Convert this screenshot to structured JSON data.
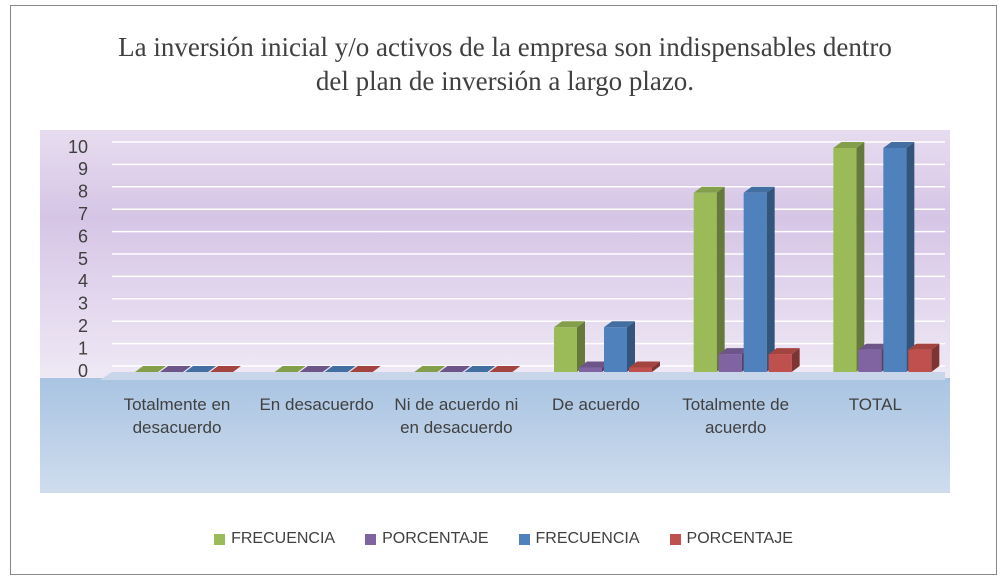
{
  "chart_data": {
    "type": "bar3d",
    "title": "La inversión inicial  y/o activos de la empresa son indispensables dentro del plan de inversión a largo plazo.",
    "categories": [
      "Totalmente en desacuerdo",
      "En desacuerdo",
      "Ni de acuerdo ni en desacuerdo",
      "De acuerdo",
      "Totalmente de acuerdo",
      "TOTAL"
    ],
    "series": [
      {
        "name": "FRECUENCIA",
        "color": "#9bbb59",
        "values": [
          0,
          0,
          0,
          2,
          8,
          10
        ]
      },
      {
        "name": "PORCENTAJE",
        "color": "#8064a2",
        "values": [
          0,
          0,
          0,
          0.2,
          0.8,
          1.0
        ]
      },
      {
        "name": "FRECUENCIA",
        "color": "#4f81bd",
        "values": [
          0,
          0,
          0,
          2,
          8,
          10
        ]
      },
      {
        "name": "PORCENTAJE",
        "color": "#c0504d",
        "values": [
          0,
          0,
          0,
          0.2,
          0.8,
          1.0
        ]
      }
    ],
    "ylim": [
      0,
      10
    ],
    "yticks": [
      0,
      1,
      2,
      3,
      4,
      5,
      6,
      7,
      8,
      9,
      10
    ],
    "grid": true,
    "legend": "bottom"
  }
}
